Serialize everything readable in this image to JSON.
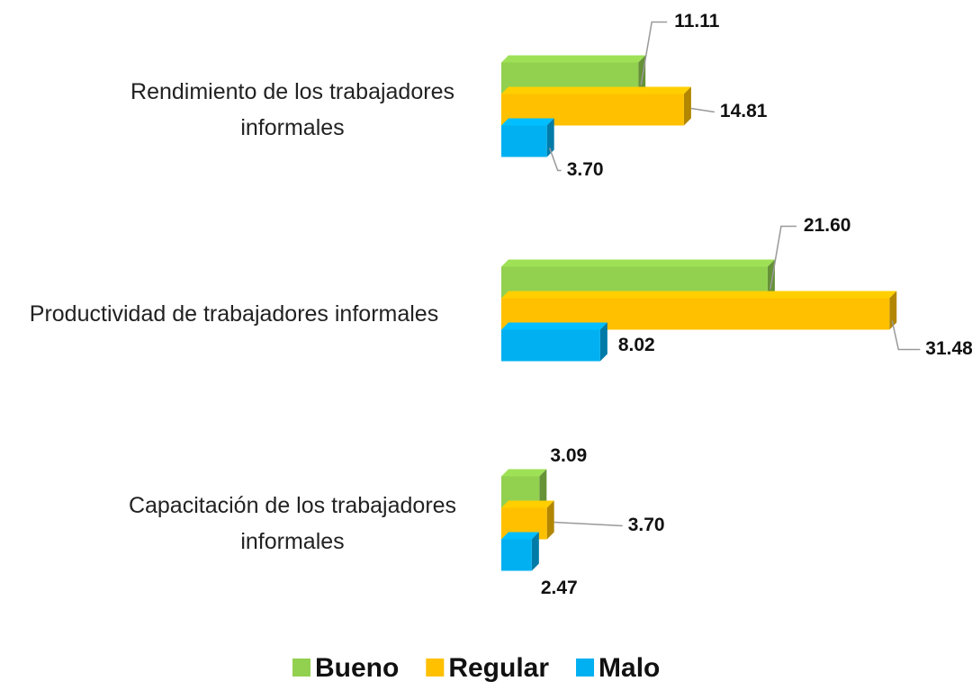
{
  "chart_data": {
    "type": "bar",
    "orientation": "horizontal",
    "categories": [
      "Rendimiento de los trabajadores informales",
      "Productividad de trabajadores informales",
      "Capacitación de los trabajadores informales"
    ],
    "series": [
      {
        "name": "Bueno",
        "color": "#92d050",
        "values": [
          11.11,
          21.6,
          3.09
        ],
        "value_labels": [
          "11.11",
          "21.60",
          "3.09"
        ]
      },
      {
        "name": "Regular",
        "color": "#ffc000",
        "values": [
          14.81,
          31.48,
          3.7
        ],
        "value_labels": [
          "14.81",
          "31.48",
          "3.70"
        ]
      },
      {
        "name": "Malo",
        "color": "#00b0f0",
        "values": [
          3.7,
          8.02,
          2.47
        ],
        "value_labels": [
          "3.70",
          "8.02",
          "2.47"
        ]
      }
    ],
    "legend": "bottom"
  }
}
